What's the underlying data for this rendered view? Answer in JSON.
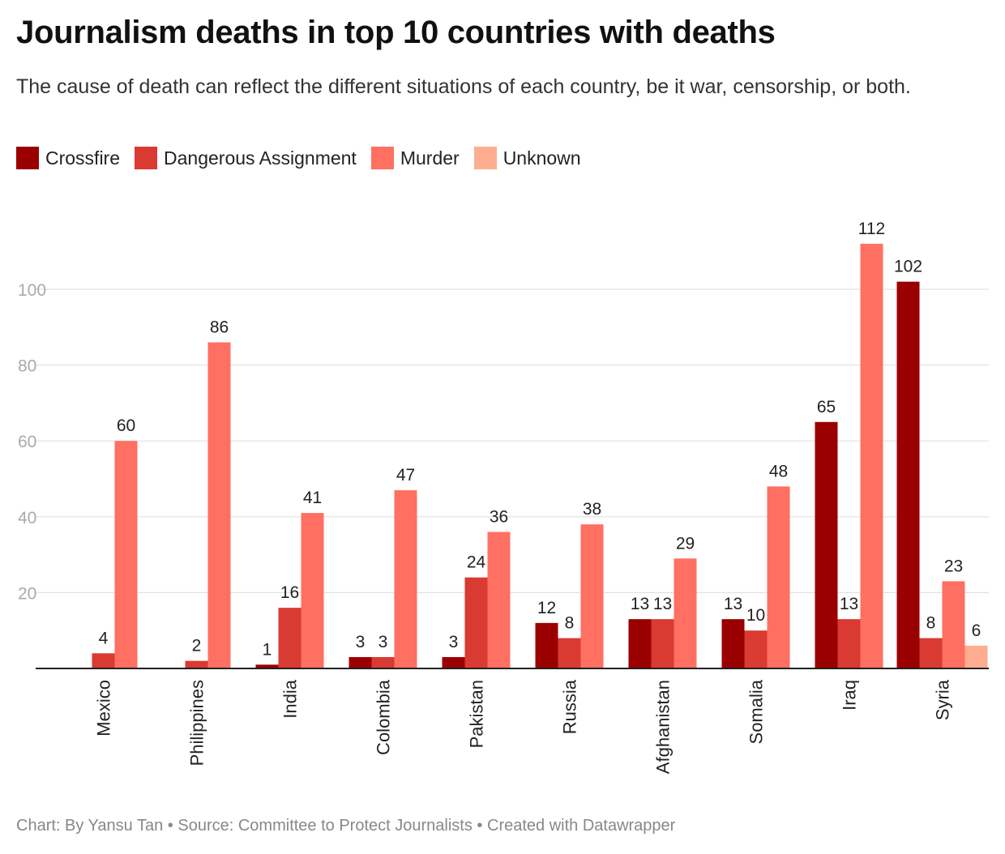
{
  "title": "Journalism deaths in top 10 countries with deaths",
  "subtitle": "The cause of death can reflect the different situations of each country, be it war, censorship, or both.",
  "footer": {
    "byline": "Chart: By Yansu Tan",
    "separator": "•",
    "source": "Source: Committee to Protect Journalists",
    "created": "Created with Datawrapper"
  },
  "colors": {
    "crossfire": "#9b0000",
    "dangerous": "#d93a32",
    "murder": "#ff7062",
    "unknown": "#ffad90",
    "grid": "#e2e2e2",
    "axis": "#222222",
    "tick_label": "#aaaaaa"
  },
  "chart_data": {
    "type": "bar",
    "ylim": [
      0,
      115
    ],
    "yticks": [
      20,
      40,
      60,
      80,
      100
    ],
    "grid": true,
    "legend_position": "top-left",
    "categories": [
      "Mexico",
      "Philippines",
      "India",
      "Colombia",
      "Pakistan",
      "Russia",
      "Afghanistan",
      "Somalia",
      "Iraq",
      "Syria"
    ],
    "series": [
      {
        "name": "Crossfire",
        "color": "#9b0000",
        "values": [
          null,
          null,
          1,
          3,
          3,
          12,
          13,
          13,
          65,
          102
        ]
      },
      {
        "name": "Dangerous Assignment",
        "color": "#d93a32",
        "values": [
          4,
          2,
          16,
          3,
          24,
          8,
          13,
          10,
          13,
          8
        ]
      },
      {
        "name": "Murder",
        "color": "#ff7062",
        "values": [
          60,
          86,
          41,
          47,
          36,
          38,
          29,
          48,
          112,
          23
        ]
      },
      {
        "name": "Unknown",
        "color": "#ffad90",
        "values": [
          null,
          null,
          null,
          null,
          null,
          null,
          null,
          null,
          null,
          6
        ]
      }
    ]
  }
}
